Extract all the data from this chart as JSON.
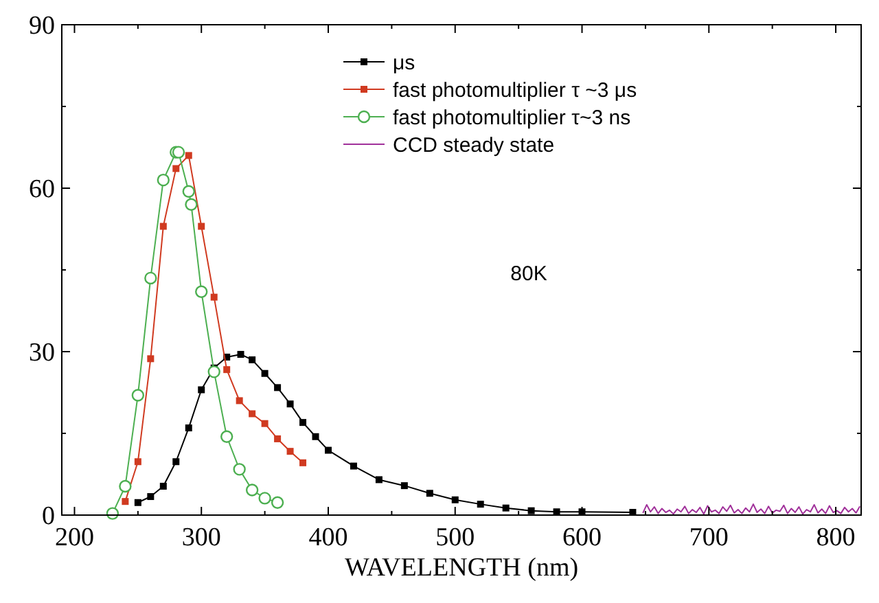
{
  "chart_data": {
    "type": "line",
    "xlabel": "WAVELENGTH (nm)",
    "annotations": [
      "80K"
    ],
    "xlim": [
      190,
      820
    ],
    "ylim": [
      0,
      90
    ],
    "xticks": [
      200,
      {
        "value": 250,
        "label": null
      },
      300,
      {
        "value": 350,
        "label": null
      },
      400,
      {
        "value": 450,
        "label": null
      },
      500,
      {
        "value": 550,
        "label": null
      },
      600,
      {
        "value": 650,
        "label": null
      },
      700,
      {
        "value": 750,
        "label": null
      },
      800
    ],
    "yticks": [
      0,
      {
        "value": 15,
        "label": null
      },
      30,
      {
        "value": 45,
        "label": null
      },
      60,
      {
        "value": 75,
        "label": null
      },
      90
    ],
    "grid": false,
    "legend": "top right",
    "series": [
      {
        "name": "μs",
        "color": "#000000",
        "marker": "square",
        "x": [
          250,
          260,
          270,
          280,
          290,
          300,
          310,
          320,
          331,
          340,
          350,
          360,
          370,
          380,
          390,
          400,
          420,
          440,
          460,
          480,
          500,
          520,
          540,
          560,
          580,
          600,
          640
        ],
        "values": [
          2.3,
          3.4,
          5.3,
          9.8,
          16,
          23,
          27,
          29,
          29.5,
          28.5,
          26,
          23.4,
          20.4,
          17,
          14.4,
          11.9,
          9,
          6.5,
          5.4,
          4,
          2.8,
          2,
          1.3,
          0.8,
          0.6,
          0.6,
          0.5
        ]
      },
      {
        "name": "fast photomultiplier τ ~3 μs",
        "color": "#d03a20",
        "marker": "square",
        "x": [
          240,
          250,
          260,
          270,
          280,
          290,
          300,
          310,
          320,
          330,
          340,
          350,
          360,
          370,
          380
        ],
        "values": [
          2.5,
          9.8,
          28.7,
          53,
          63.6,
          66,
          53,
          40,
          26.7,
          21,
          18.6,
          16.8,
          14,
          11.7,
          9.6
        ]
      },
      {
        "name": "fast photomultiplier  τ~3 ns",
        "color": "#4caf50",
        "marker": "circle",
        "x": [
          230,
          240,
          250,
          260,
          270,
          280,
          282,
          290,
          292,
          300,
          310,
          320,
          330,
          340,
          350,
          360
        ],
        "values": [
          0.3,
          5.3,
          22,
          43.5,
          61.5,
          66.6,
          66.6,
          59.4,
          57,
          41,
          26.3,
          14.4,
          8.4,
          4.6,
          3.1,
          2.3
        ]
      },
      {
        "name": "CCD steady state",
        "color": "#a0309a",
        "marker": "none",
        "x": [
          648,
          651,
          654,
          657,
          660,
          663,
          666,
          669,
          672,
          675,
          678,
          681,
          684,
          687,
          690,
          693,
          696,
          699,
          702,
          705,
          708,
          711,
          714,
          717,
          720,
          723,
          726,
          729,
          732,
          735,
          738,
          741,
          744,
          747,
          750,
          753,
          756,
          759,
          762,
          765,
          768,
          771,
          774,
          777,
          780,
          783,
          786,
          789,
          792,
          795,
          798,
          801,
          804,
          807,
          810,
          813,
          816,
          819
        ],
        "values": [
          0.4,
          1.9,
          0.6,
          1.5,
          0.3,
          1.2,
          0.5,
          0.9,
          0.2,
          1.1,
          0.6,
          1.6,
          0.3,
          1.0,
          0.5,
          1.4,
          0.2,
          1.7,
          0.6,
          0.9,
          0.3,
          1.5,
          0.7,
          1.8,
          0.4,
          1.0,
          0.3,
          1.3,
          0.6,
          2.0,
          0.5,
          1.1,
          0.3,
          1.6,
          0.4,
          0.9,
          0.7,
          1.8,
          0.3,
          1.2,
          0.5,
          1.5,
          0.2,
          1.0,
          0.6,
          1.9,
          0.4,
          1.1,
          0.3,
          1.7,
          0.5,
          0.8,
          0.3,
          1.4,
          0.6,
          1.2,
          0.4,
          1.6
        ]
      }
    ]
  }
}
